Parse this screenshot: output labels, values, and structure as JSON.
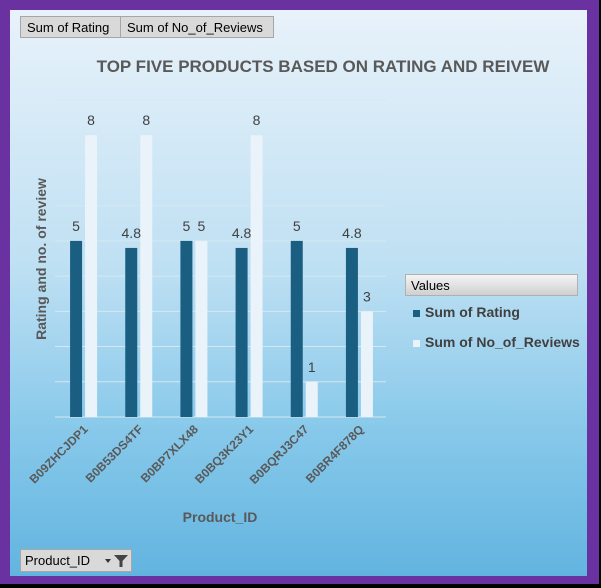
{
  "field_buttons": {
    "rating": "Sum of Rating",
    "reviews": "Sum of No_of_Reviews",
    "product_filter": "Product_ID"
  },
  "legend": {
    "header": "Values",
    "items": [
      "Sum of Rating",
      "Sum of No_of_Reviews"
    ]
  },
  "colors": {
    "rating": "#1a5e82",
    "reviews": "#eaf3fa",
    "frame": "#6a32a0",
    "title": "#595959"
  },
  "chart_data": {
    "type": "bar",
    "title": "TOP FIVE PRODUCTS BASED ON RATING AND REIVEW",
    "xlabel": "Product_ID",
    "ylabel": "Rating and no. of  review",
    "categories": [
      "B09ZHCJDP1",
      "B0B53DS4TF",
      "B0BP7XLX48",
      "B0BQ3K23Y1",
      "B0BQRJ3C47",
      "B0BR4F878Q"
    ],
    "series": [
      {
        "name": "Sum of Rating",
        "values": [
          5,
          4.8,
          5,
          4.8,
          5,
          4.8
        ],
        "labels": [
          "5",
          "4.8",
          "5",
          "4.8",
          "5",
          "4.8"
        ]
      },
      {
        "name": "Sum of No_of_Reviews",
        "values": [
          8,
          8,
          5,
          8,
          1,
          3
        ],
        "labels": [
          "8",
          "8",
          "5",
          "8",
          "1",
          "3"
        ]
      }
    ],
    "ylim": [
      0,
      9
    ],
    "grid": true,
    "legend_position": "right"
  }
}
